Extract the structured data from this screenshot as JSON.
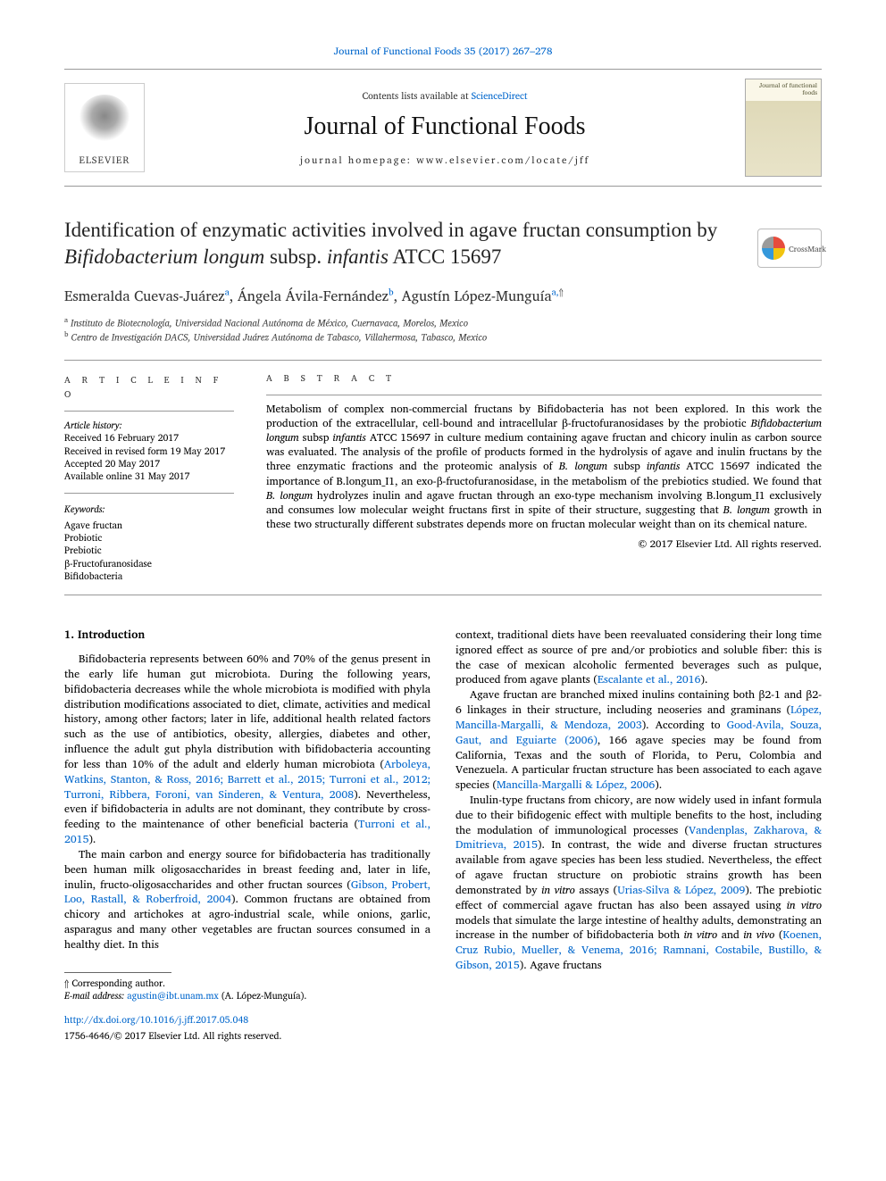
{
  "journal_ref": "Journal of Functional Foods 35 (2017) 267–278",
  "contents_prefix": "Contents lists available at ",
  "contents_link": "ScienceDirect",
  "journal_name": "Journal of Functional Foods",
  "homepage_prefix": "journal homepage: ",
  "homepage_url": "www.elsevier.com/locate/jff",
  "elsevier_label": "ELSEVIER",
  "cover_text": "Journal of functional foods",
  "crossmark_label": "CrossMark",
  "title_pre": "Identification of enzymatic activities involved in agave fructan consumption by ",
  "title_ital1": "Bifidobacterium longum",
  "title_mid": " subsp. ",
  "title_ital2": "infantis",
  "title_post": " ATCC 15697",
  "authors": {
    "a1": "Esmeralda Cuevas-Juárez",
    "a1_aff": "a",
    "a2": "Ángela Ávila-Fernández",
    "a2_aff": "b",
    "a3": "Agustín López-Munguía",
    "a3_aff": "a,",
    "a3_star": "⇑"
  },
  "affiliations": {
    "a": "Instituto de Biotecnología, Universidad Nacional Autónoma de México, Cuernavaca, Morelos, Mexico",
    "b": "Centro de Investigación DACS, Universidad Juárez Autónoma de Tabasco, Villahermosa, Tabasco, Mexico"
  },
  "info_heading": "a r t i c l e   i n f o",
  "abstract_heading": "a b s t r a c t",
  "history_label": "Article history:",
  "history": {
    "received": "Received 16 February 2017",
    "revised": "Received in revised form 19 May 2017",
    "accepted": "Accepted 20 May 2017",
    "online": "Available online 31 May 2017"
  },
  "keywords_label": "Keywords:",
  "keywords": [
    "Agave fructan",
    "Probiotic",
    "Prebiotic",
    "β-Fructofuranosidase",
    "Bifidobacteria"
  ],
  "abstract_parts": {
    "p1": "Metabolism of complex non-commercial fructans by Bifidobacteria has not been explored. In this work the production of the extracellular, cell-bound and intracellular β-fructofuranosidases by the probiotic ",
    "i1": "Bifidobacterium longum",
    "p2": " subsp ",
    "i2": "infantis",
    "p3": " ATCC 15697 in culture medium containing agave fructan and chicory inulin as carbon source was evaluated. The analysis of the profile of products formed in the hydrolysis of agave and inulin fructans by the three enzymatic fractions and the proteomic analysis of ",
    "i3": "B. longum",
    "p4": " subsp ",
    "i4": "infantis",
    "p5": " ATCC 15697 indicated the importance of B.longum_I1, an exo-β-fructofuranosidase, in the metabolism of the prebiotics studied. We found that ",
    "i5": "B. longum",
    "p6": " hydrolyzes inulin and agave fructan through an exo-type mechanism involving B.longum_I1 exclusively and consumes low molecular weight fructans first in spite of their structure, suggesting that ",
    "i6": "B. longum",
    "p7": " growth in these two structurally different substrates depends more on fructan molecular weight than on its chemical nature."
  },
  "copyright": "© 2017 Elsevier Ltd. All rights reserved.",
  "section1": "1. Introduction",
  "left_paras": {
    "p1a": "Bifidobacteria represents between 60% and 70% of the genus present in the early life human gut microbiota. During the following years, bifidobacteria decreases while the whole microbiota is modified with phyla distribution modifications associated to diet, climate, activities and medical history, among other factors; later in life, additional health related factors such as the use of antibiotics, obesity, allergies, diabetes and other, influence the adult gut phyla distribution with bifidobacteria accounting for less than 10% of the adult and elderly human microbiota (",
    "p1ref": "Arboleya, Watkins, Stanton, & Ross, 2016; Barrett et al., 2015; Turroni et al., 2012; Turroni, Ribbera, Foroni, van Sinderen, & Ventura, 2008",
    "p1b": "). Nevertheless, even if bifidobacteria in adults are not dominant, they contribute by cross-feeding to the maintenance of other beneficial bacteria (",
    "p1ref2": "Turroni et al., 2015",
    "p1c": ").",
    "p2a": "The main carbon and energy source for bifidobacteria has traditionally been human milk oligosaccharides in breast feeding and, later in life, inulin, fructo-oligosaccharides and other fructan sources (",
    "p2ref": "Gibson, Probert, Loo, Rastall, & Roberfroid, 2004",
    "p2b": "). Common fructans are obtained from chicory and artichokes at agro-industrial scale, while onions, garlic, asparagus and many other vegetables are fructan sources consumed in a healthy diet. In this"
  },
  "right_paras": {
    "p1a": "context, traditional diets have been reevaluated considering their long time ignored effect as source of pre and/or probiotics and soluble fiber: this is the case of mexican alcoholic fermented beverages such as pulque, produced from agave plants (",
    "p1ref": "Escalante et al., 2016",
    "p1b": ").",
    "p2a": "Agave fructan are branched mixed inulins containing both β2-1 and β2-6 linkages in their structure, including neoseries and graminans (",
    "p2ref": "López, Mancilla-Margalli, & Mendoza, 2003",
    "p2b": "). According to ",
    "p2ref2": "Good-Avila, Souza, Gaut, and Eguiarte (2006)",
    "p2c": ", 166 agave species may be found from California, Texas and the south of Florida, to Peru, Colombia and Venezuela. A particular fructan structure has been associated to each agave species (",
    "p2ref3": "Mancilla-Margalli & López, 2006",
    "p2d": ").",
    "p3a": "Inulin-type fructans from chicory, are now widely used in infant formula due to their bifidogenic effect with multiple benefits to the host, including the modulation of immunological processes (",
    "p3ref": "Vandenplas, Zakharova, & Dmitrieva, 2015",
    "p3b": "). In contrast, the wide and diverse fructan structures available from agave species has been less studied. Nevertheless, the effect of agave fructan structure on probiotic strains growth has been demonstrated by ",
    "p3ital": "in vitro",
    "p3c": " assays (",
    "p3ref2": "Urias-Silva & López, 2009",
    "p3d": "). The prebiotic effect of commercial agave fructan has also been assayed using ",
    "p3ital2": "in vitro",
    "p3e": " models that simulate the large intestine of healthy adults, demonstrating an increase in the number of bifidobacteria both ",
    "p3ital3": "in vitro",
    "p3f": " and ",
    "p3ital4": "in vivo",
    "p3g": " (",
    "p3ref3": "Koenen, Cruz Rubio, Mueller, & Venema, 2016; Ramnani, Costabile, Bustillo, & Gibson, 2015",
    "p3h": "). Agave fructans"
  },
  "footer": {
    "corr_label": "⇑ Corresponding author.",
    "email_label": "E-mail address:",
    "email": "agustin@ibt.unam.mx",
    "email_name": " (A. López-Munguía)."
  },
  "doi": "http://dx.doi.org/10.1016/j.jff.2017.05.048",
  "issn_line": "1756-4646/© 2017 Elsevier Ltd. All rights reserved.",
  "colors": {
    "link": "#0066cc",
    "text": "#000000",
    "rule": "#999999"
  }
}
